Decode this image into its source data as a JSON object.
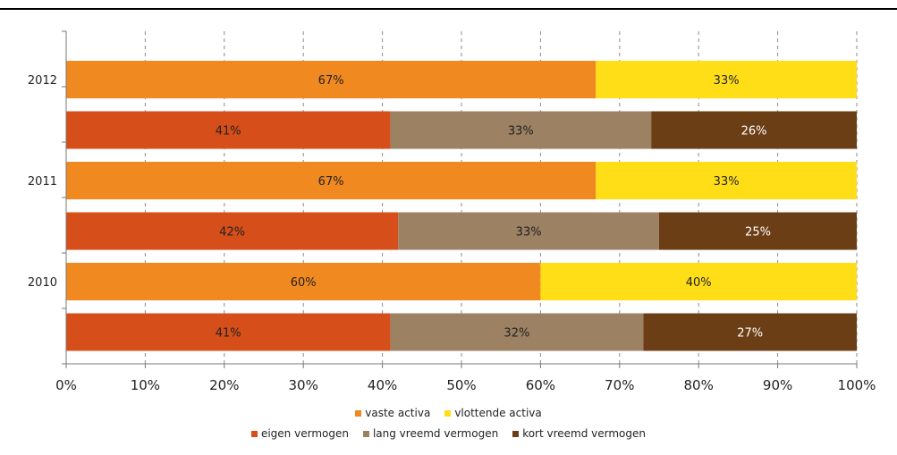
{
  "chart_data": {
    "type": "bar",
    "orientation": "horizontal",
    "stacked": "percent",
    "xlim": [
      0,
      100
    ],
    "x_ticks": [
      "0%",
      "10%",
      "20%",
      "30%",
      "40%",
      "50%",
      "60%",
      "70%",
      "80%",
      "90%",
      "100%"
    ],
    "categories": [
      "2012",
      "",
      "2011",
      "",
      "2010",
      ""
    ],
    "bars": [
      {
        "segments": [
          {
            "series": "vaste activa",
            "value": 67,
            "label": "67%"
          },
          {
            "series": "vlottende activa",
            "value": 33,
            "label": "33%"
          }
        ]
      },
      {
        "segments": [
          {
            "series": "eigen vermogen",
            "value": 41,
            "label": "41%"
          },
          {
            "series": "lang vreemd vermogen",
            "value": 33,
            "label": "33%"
          },
          {
            "series": "kort vreemd vermogen",
            "value": 26,
            "label": "26%"
          }
        ]
      },
      {
        "segments": [
          {
            "series": "vaste activa",
            "value": 67,
            "label": "67%"
          },
          {
            "series": "vlottende activa",
            "value": 33,
            "label": "33%"
          }
        ]
      },
      {
        "segments": [
          {
            "series": "eigen vermogen",
            "value": 42,
            "label": "42%"
          },
          {
            "series": "lang vreemd vermogen",
            "value": 33,
            "label": "33%"
          },
          {
            "series": "kort vreemd vermogen",
            "value": 25,
            "label": "25%"
          }
        ]
      },
      {
        "segments": [
          {
            "series": "vaste activa",
            "value": 60,
            "label": "60%"
          },
          {
            "series": "vlottende activa",
            "value": 40,
            "label": "40%"
          }
        ]
      },
      {
        "segments": [
          {
            "series": "eigen vermogen",
            "value": 41,
            "label": "41%"
          },
          {
            "series": "lang vreemd vermogen",
            "value": 32,
            "label": "32%"
          },
          {
            "series": "kort vreemd vermogen",
            "value": 27,
            "label": "27%"
          }
        ]
      }
    ],
    "series": [
      {
        "name": "vaste activa",
        "color": "#f0891f"
      },
      {
        "name": "vlottende activa",
        "color": "#ffde17"
      },
      {
        "name": "eigen vermogen",
        "color": "#d64e19"
      },
      {
        "name": "lang vreemd vermogen",
        "color": "#9c8163"
      },
      {
        "name": "kort vreemd vermogen",
        "color": "#6b3e16"
      }
    ],
    "legend": [
      [
        "vaste activa",
        "vlottende activa"
      ],
      [
        "eigen vermogen",
        "lang vreemd vermogen",
        "kort vreemd vermogen"
      ]
    ],
    "legend_position": "bottom",
    "grid": "vertical dashed"
  }
}
